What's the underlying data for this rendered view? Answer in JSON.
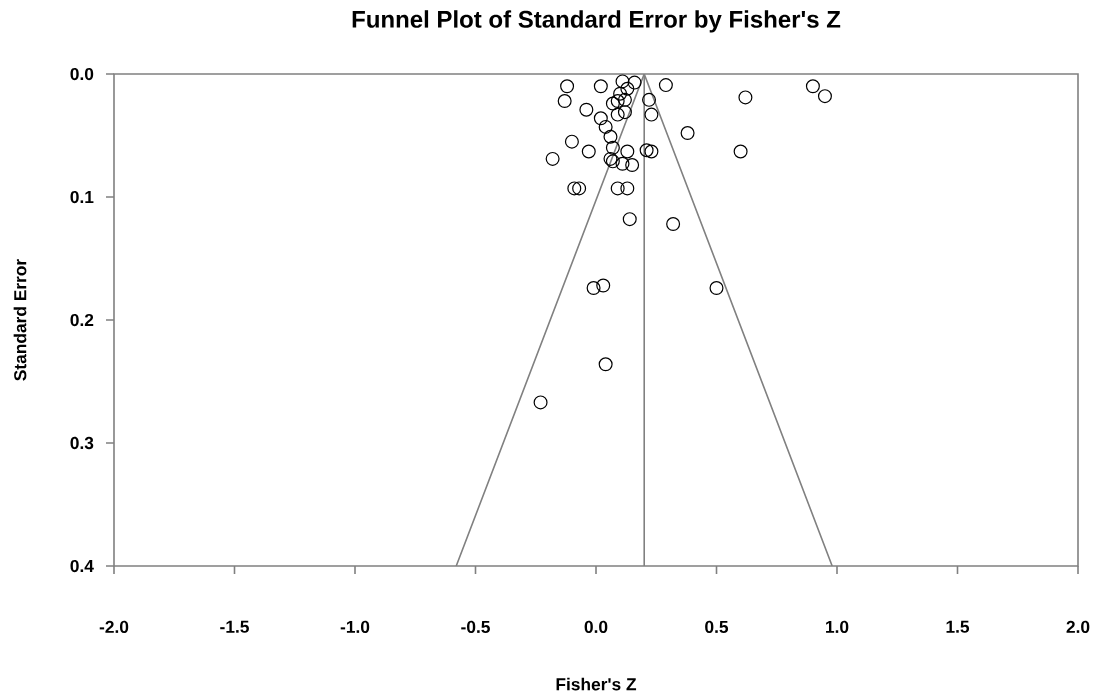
{
  "chart_data": {
    "type": "scatter",
    "title": "Funnel Plot of Standard Error by Fisher's Z",
    "xlabel": "Fisher's Z",
    "ylabel": "Standard Error",
    "xlim": [
      -2,
      2
    ],
    "ylim": [
      0.4,
      0
    ],
    "xticks": [
      {
        "value": -2,
        "label": "-2.0"
      },
      {
        "value": -1.5,
        "label": "-1.5"
      },
      {
        "value": -1,
        "label": "-1.0"
      },
      {
        "value": -0.5,
        "label": "-0.5"
      },
      {
        "value": 0,
        "label": "0.0"
      },
      {
        "value": 0.5,
        "label": "0.5"
      },
      {
        "value": 1,
        "label": "1.0"
      },
      {
        "value": 1.5,
        "label": "1.5"
      },
      {
        "value": 2,
        "label": "2.0"
      }
    ],
    "yticks": [
      {
        "value": 0,
        "label": "0.0"
      },
      0.1,
      0.2,
      0.3,
      0.4
    ],
    "grid": false,
    "ref_lines": [
      {
        "axis": "x",
        "value": 0.2,
        "color": "#808080"
      }
    ],
    "series": [
      {
        "type": "line",
        "color": "#808080",
        "marker": "none",
        "x": [
          -0.58,
          0.2,
          0.98
        ],
        "values": [
          0.4,
          0,
          0.4
        ]
      },
      {
        "color": "#000000",
        "marker": "circle",
        "x": [
          -0.12,
          -0.13,
          0.02,
          0.11,
          0.16,
          0.13,
          0.1,
          0.09,
          0.12,
          0.07,
          -0.04,
          0.02,
          0.09,
          0.12,
          0.22,
          0.23,
          0.29,
          0.62,
          0.9,
          0.95,
          0.04,
          0.06,
          0.38,
          -0.1,
          0.07,
          -0.03,
          0.13,
          0.21,
          0.23,
          -0.18,
          0.06,
          0.07,
          0.11,
          0.15,
          0.6,
          -0.09,
          -0.07,
          0.09,
          0.13,
          0.14,
          0.32,
          -0.01,
          0.03,
          0.5,
          0.04,
          -0.23
        ],
        "values": [
          0.01,
          0.022,
          0.01,
          0.006,
          0.007,
          0.012,
          0.016,
          0.022,
          0.021,
          0.024,
          0.029,
          0.036,
          0.033,
          0.031,
          0.021,
          0.033,
          0.009,
          0.019,
          0.01,
          0.018,
          0.043,
          0.051,
          0.048,
          0.055,
          0.06,
          0.063,
          0.063,
          0.062,
          0.063,
          0.069,
          0.069,
          0.071,
          0.073,
          0.074,
          0.063,
          0.093,
          0.093,
          0.093,
          0.093,
          0.118,
          0.122,
          0.174,
          0.172,
          0.174,
          0.236,
          0.267
        ]
      }
    ]
  }
}
